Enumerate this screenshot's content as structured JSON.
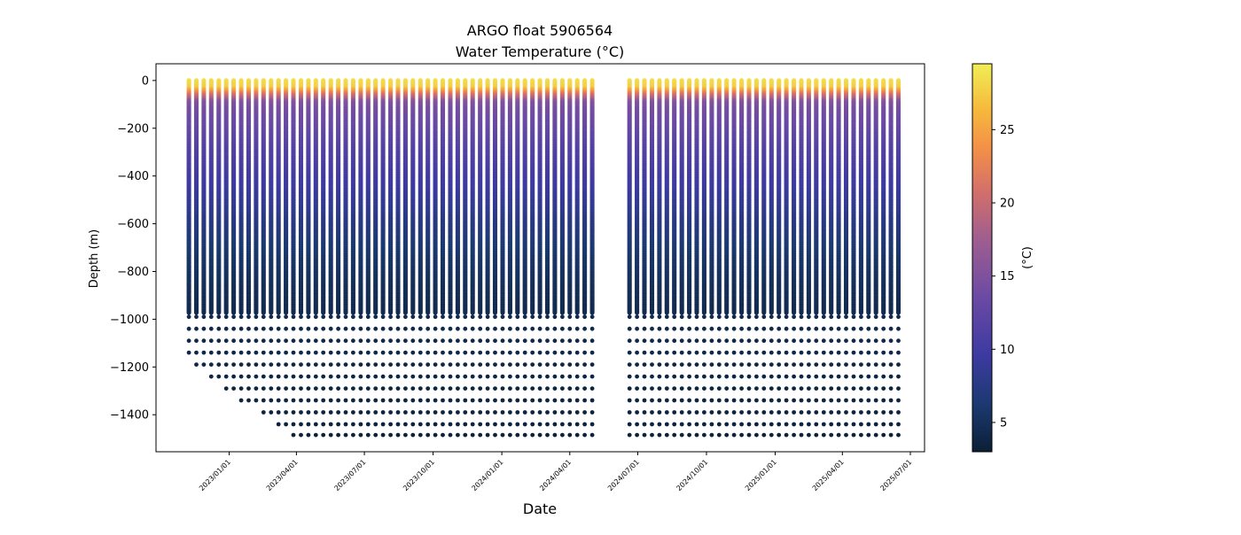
{
  "chart_data": {
    "type": "scatter",
    "title": "ARGO float 5906564",
    "subtitle": "Water Temperature (°C)",
    "xlabel": "Date",
    "ylabel": "Depth (m)",
    "colorbar_label": "(°C)",
    "xlim": [
      "2022-09-25",
      "2025-07-20"
    ],
    "ylim": [
      -1555,
      70
    ],
    "x_ticks": [
      "2023/01/01",
      "2023/04/01",
      "2023/07/01",
      "2023/10/01",
      "2024/01/01",
      "2024/04/01",
      "2024/07/01",
      "2024/10/01",
      "2025/01/01",
      "2025/04/01",
      "2025/07/01"
    ],
    "y_ticks": [
      0,
      -200,
      -400,
      -600,
      -800,
      -1000,
      -1200,
      -1400
    ],
    "colorbar_range": [
      3,
      29.5
    ],
    "colorbar_ticks": [
      5,
      10,
      15,
      20,
      25
    ],
    "colormap": [
      "#0b1f35",
      "#1b3970",
      "#3d3aa1",
      "#6c4aa4",
      "#a05e8f",
      "#d36f6a",
      "#f38f48",
      "#f6b83c",
      "#f0ee55"
    ],
    "profile_interval_days": 10,
    "profile_start": "2022-11-08",
    "profile_end": "2025-06-19",
    "gap": [
      "2024-05-08",
      "2024-06-12"
    ],
    "continuous_sampling_to_depth": -975,
    "sparse_levels": [
      -990,
      -1040,
      -1090,
      -1140,
      -1190,
      -1240,
      -1290,
      -1340,
      -1390,
      -1440,
      -1485
    ],
    "temperature_profile": {
      "depth": [
        0,
        -30,
        -60,
        -90,
        -120,
        -200,
        -300,
        -450,
        -600,
        -750,
        -900,
        -1000,
        -1500
      ],
      "temp": [
        28.5,
        27.5,
        20,
        14.5,
        13.5,
        12.5,
        11,
        9.5,
        7.5,
        5.8,
        4.8,
        4.3,
        3.3
      ]
    },
    "max_profile_depth": [
      {
        "date": "2022-11-08",
        "depth": -1140
      },
      {
        "date": "2022-11-28",
        "depth": -1190
      },
      {
        "date": "2022-12-18",
        "depth": -1240
      },
      {
        "date": "2023-01-07",
        "depth": -1290
      },
      {
        "date": "2023-02-06",
        "depth": -1340
      },
      {
        "date": "2023-02-26",
        "depth": -1390
      },
      {
        "date": "2023-03-18",
        "depth": -1440
      },
      {
        "date": "2023-04-07",
        "depth": -1485
      }
    ]
  }
}
